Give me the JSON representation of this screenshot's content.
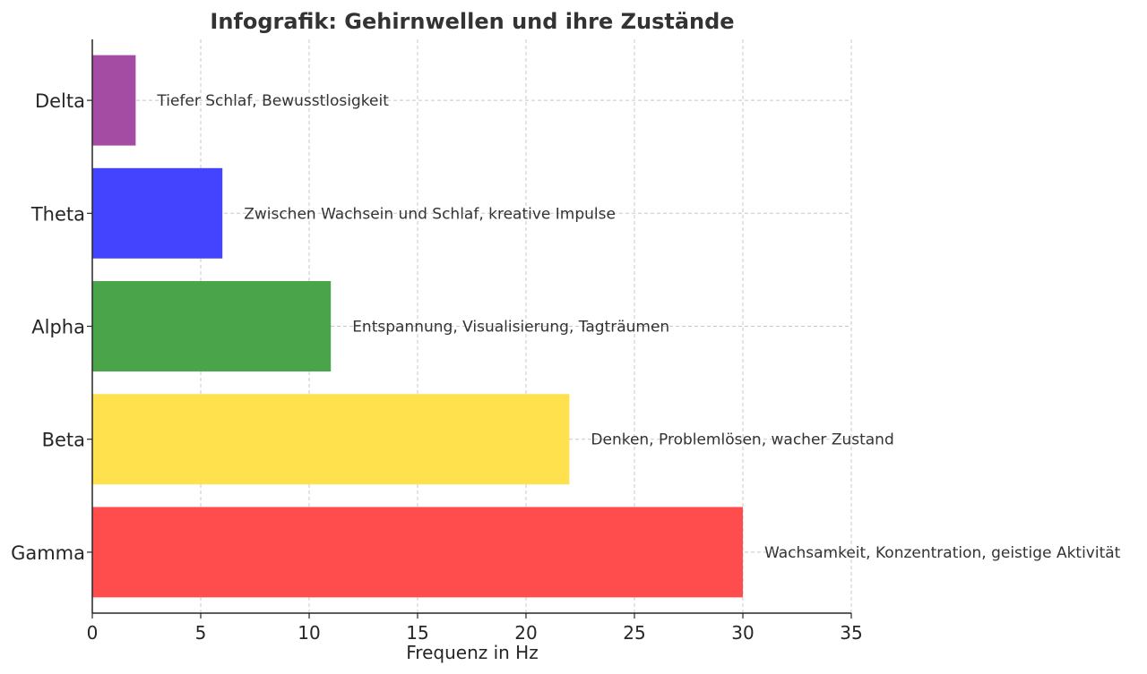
{
  "chart_data": {
    "type": "bar",
    "orientation": "horizontal",
    "title": "Infografik: Gehirnwellen und ihre Zustände",
    "xlabel": "Frequenz in Hz",
    "ylabel": "",
    "xlim": [
      0,
      35
    ],
    "xticks": [
      0,
      5,
      10,
      15,
      20,
      25,
      30,
      35
    ],
    "grid": true,
    "categories": [
      "Delta",
      "Theta",
      "Alpha",
      "Beta",
      "Gamma"
    ],
    "values": [
      2,
      6,
      11,
      22,
      30
    ],
    "colors": [
      "#a44ba4",
      "#4444ff",
      "#4aa44a",
      "#ffe04d",
      "#ff4d4d"
    ],
    "annotations": [
      "Tiefer Schlaf, Bewusstlosigkeit",
      "Zwischen Wachsein und Schlaf, kreative Impulse",
      "Entspannung, Visualisierung, Tagträumen",
      "Denken, Problemlösen, wacher Zustand",
      "Wachsamkeit, Konzentration, geistige Aktivität"
    ]
  }
}
